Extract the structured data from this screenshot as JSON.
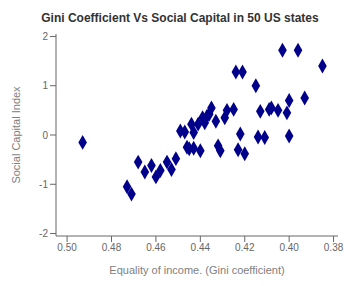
{
  "chart_data": {
    "type": "scatter",
    "title": "Gini Coefficient Vs Social Capital in 50 US states",
    "xlabel": "Equality of income. (Gini coefficient)",
    "ylabel": "Social Capital Index",
    "xlim": [
      0.505,
      0.378
    ],
    "ylim": [
      -2.05,
      2.05
    ],
    "xticks": [
      {
        "value": 0.5,
        "label": "0.50"
      },
      0.48,
      0.46,
      0.44,
      0.42,
      {
        "value": 0.4,
        "label": "0.40"
      },
      0.38
    ],
    "yticks": [
      -2,
      -1,
      0,
      1,
      2
    ],
    "color": "#00008B",
    "marker": "diamond",
    "grid": false,
    "x": [
      0.493,
      0.473,
      0.471,
      0.468,
      0.465,
      0.462,
      0.46,
      0.458,
      0.455,
      0.453,
      0.451,
      0.449,
      0.447,
      0.446,
      0.445,
      0.444,
      0.443,
      0.443,
      0.441,
      0.44,
      0.439,
      0.438,
      0.437,
      0.436,
      0.435,
      0.433,
      0.432,
      0.431,
      0.429,
      0.428,
      0.425,
      0.424,
      0.423,
      0.422,
      0.421,
      0.42,
      0.415,
      0.414,
      0.413,
      0.411,
      0.409,
      0.408,
      0.405,
      0.403,
      0.401,
      0.4,
      0.4,
      0.396,
      0.393,
      0.385
    ],
    "values": [
      -0.15,
      -1.05,
      -1.2,
      -0.55,
      -0.75,
      -0.62,
      -0.85,
      -0.72,
      -0.55,
      -0.7,
      -0.48,
      0.08,
      0.06,
      -0.25,
      -0.28,
      0.22,
      -0.27,
      0.05,
      0.22,
      -0.32,
      0.35,
      0.25,
      0.38,
      0.42,
      0.55,
      0.28,
      -0.22,
      -0.32,
      0.35,
      0.5,
      0.52,
      1.28,
      -0.3,
      0.02,
      1.28,
      -0.38,
      1.0,
      -0.04,
      0.48,
      -0.05,
      0.52,
      0.55,
      0.5,
      1.72,
      0.45,
      0.7,
      -0.02,
      1.72,
      0.75,
      1.4
    ]
  }
}
